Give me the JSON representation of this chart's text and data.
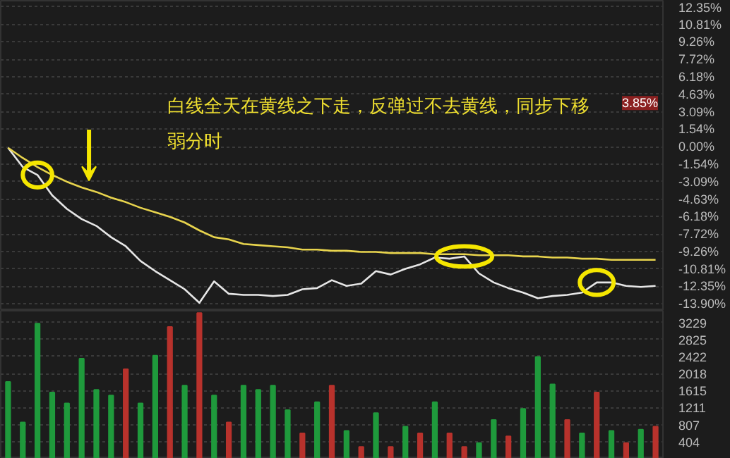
{
  "chart_data": [
    {
      "type": "line",
      "categories": [
        null,
        null,
        null,
        null,
        null,
        null,
        null,
        null,
        null,
        null,
        null,
        null,
        null,
        null,
        null,
        null,
        null,
        null,
        null,
        null,
        null,
        null,
        null,
        null,
        null,
        null,
        null,
        null,
        null,
        null,
        null,
        null,
        null,
        null,
        null,
        null,
        null,
        null,
        null,
        null,
        null,
        null,
        null,
        null,
        null
      ],
      "series": [
        {
          "color": "#e6e6e6",
          "values": [
            -0.1,
            -1.8,
            -2.5,
            -4.3,
            -5.5,
            -6.4,
            -7.0,
            -8.0,
            -8.8,
            -10.1,
            -11.0,
            -11.8,
            -12.6,
            -13.8,
            -11.9,
            -13.0,
            -13.1,
            -13.1,
            -13.2,
            -13.1,
            -12.6,
            -12.5,
            -11.8,
            -12.3,
            -12.1,
            -11.0,
            -11.3,
            -10.8,
            -10.4,
            -9.8,
            -9.9,
            -9.7,
            -11.2,
            -12.0,
            -12.5,
            -12.9,
            -13.4,
            -13.2,
            -13.1,
            -12.9,
            -12.0,
            -12.0,
            -12.3,
            -12.4,
            -12.3
          ]
        },
        {
          "color": "#e8d44d",
          "values": [
            -0.1,
            -1.0,
            -1.8,
            -2.5,
            -3.1,
            -3.6,
            -4.0,
            -4.5,
            -4.9,
            -5.4,
            -5.8,
            -6.2,
            -6.7,
            -7.4,
            -8.0,
            -8.2,
            -8.6,
            -8.7,
            -8.8,
            -8.9,
            -9.1,
            -9.1,
            -9.2,
            -9.2,
            -9.3,
            -9.3,
            -9.4,
            -9.4,
            -9.4,
            -9.5,
            -9.5,
            -9.5,
            -9.6,
            -9.6,
            -9.6,
            -9.7,
            -9.7,
            -9.8,
            -9.8,
            -9.9,
            -9.9,
            -10.0,
            -10.0,
            -10.0,
            -10.0
          ]
        }
      ],
      "ylim": [
        -14.5,
        12.9
      ],
      "yticks": [
        {
          "value": 12.35,
          "label": "12.35%"
        },
        {
          "value": 10.81,
          "label": "10.81%"
        },
        {
          "value": 9.26,
          "label": "9.26%"
        },
        {
          "value": 7.72,
          "label": "7.72%"
        },
        {
          "value": 6.18,
          "label": "6.18%"
        },
        {
          "value": 4.63,
          "label": "4.63%"
        },
        {
          "value": 3.09,
          "label": "3.09%"
        },
        {
          "value": 1.54,
          "label": "1.54%"
        },
        {
          "value": 0,
          "label": "0.00%"
        },
        {
          "value": -1.54,
          "label": "-1.54%"
        },
        {
          "value": -3.09,
          "label": "-3.09%"
        },
        {
          "value": -4.63,
          "label": "-4.63%"
        },
        {
          "value": -6.18,
          "label": "-6.18%"
        },
        {
          "value": -7.72,
          "label": "-7.72%"
        },
        {
          "value": -9.26,
          "label": "-9.26%"
        },
        {
          "value": -10.81,
          "label": "-10.81%"
        },
        {
          "value": -12.35,
          "label": "-12.35%"
        },
        {
          "value": -13.9,
          "label": "-13.90%"
        }
      ],
      "annotations": [
        "白线全天在黄线之下走，反弹过不去黄线，同步下移",
        "弱分时",
        {
          "text": "3.85%",
          "y": 3.85
        }
      ],
      "grid": "y"
    },
    {
      "type": "bar",
      "categories": [
        null,
        null,
        null,
        null,
        null,
        null,
        null,
        null,
        null,
        null,
        null,
        null,
        null,
        null,
        null,
        null,
        null,
        null,
        null,
        null,
        null,
        null,
        null,
        null,
        null,
        null,
        null,
        null,
        null,
        null,
        null,
        null,
        null,
        null,
        null,
        null,
        null,
        null,
        null,
        null,
        null,
        null,
        null,
        null,
        null
      ],
      "values": [
        1820,
        860,
        3200,
        1570,
        1310,
        2370,
        1630,
        1500,
        2120,
        1310,
        2440,
        3120,
        1730,
        3450,
        1500,
        860,
        1730,
        1630,
        1730,
        1150,
        600,
        1340,
        1730,
        660,
        280,
        1080,
        280,
        760,
        600,
        1340,
        600,
        280,
        370,
        920,
        530,
        1180,
        2410,
        1760,
        920,
        600,
        1570,
        660,
        370,
        690,
        760
      ],
      "colors": [
        "#1f9a3c",
        "#1f9a3c",
        "#1f9a3c",
        "#1f9a3c",
        "#1f9a3c",
        "#1f9a3c",
        "#1f9a3c",
        "#1f9a3c",
        "#b8322c",
        "#1f9a3c",
        "#1f9a3c",
        "#b8322c",
        "#1f9a3c",
        "#b8322c",
        "#1f9a3c",
        "#b8322c",
        "#1f9a3c",
        "#1f9a3c",
        "#1f9a3c",
        "#1f9a3c",
        "#b8322c",
        "#1f9a3c",
        "#b8322c",
        "#1f9a3c",
        "#b8322c",
        "#1f9a3c",
        "#b8322c",
        "#1f9a3c",
        "#b8322c",
        "#1f9a3c",
        "#b8322c",
        "#b8322c",
        "#1f9a3c",
        "#1f9a3c",
        "#b8322c",
        "#1f9a3c",
        "#1f9a3c",
        "#1f9a3c",
        "#b8322c",
        "#1f9a3c",
        "#b8322c",
        "#1f9a3c",
        "#b8322c",
        "#1f9a3c",
        "#b8322c"
      ],
      "ylim": [
        0,
        3505
      ],
      "yticks": [
        404,
        807,
        1211,
        1615,
        2018,
        2422,
        2825,
        3229
      ],
      "grid": "y"
    }
  ]
}
